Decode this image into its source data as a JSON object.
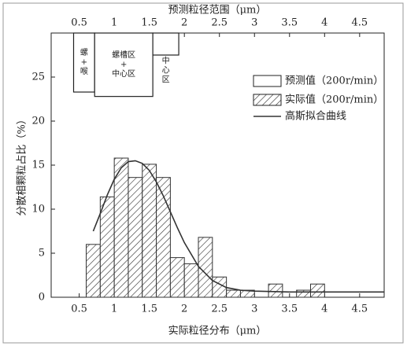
{
  "chart_data": {
    "type": "histogram",
    "title": "预测粒径范围（μm）",
    "x_label": "实际粒径分布（μm）",
    "y_label": "分散相颗粒占比（%）",
    "bins": [
      0.6,
      0.8,
      1.0,
      1.2,
      1.4,
      1.6,
      1.8,
      2.0,
      2.2,
      2.4,
      2.6,
      2.8,
      3.0,
      3.2,
      3.4,
      3.6,
      3.8,
      4.0
    ],
    "series": [
      {
        "name": "实际值（200r/min）",
        "color": "#333333",
        "values": [
          6,
          11.4,
          15.8,
          13.6,
          15.1,
          13.6,
          4.5,
          3.8,
          6.8,
          2.3,
          0.8,
          0.8,
          0,
          1.5,
          0,
          0.8,
          1.5
        ]
      },
      {
        "name": "高斯拟合曲线",
        "color": "#333333",
        "x": [
          0.7,
          0.8,
          0.9,
          1.0,
          1.1,
          1.2,
          1.3,
          1.4,
          1.5,
          1.6,
          1.7,
          1.8,
          1.9,
          2.0,
          2.2,
          2.4,
          2.6,
          2.8,
          3.0,
          3.5,
          4.0,
          4.5,
          4.85
        ],
        "values": [
          7.5,
          9.5,
          11.6,
          13.4,
          14.7,
          15.4,
          15.5,
          15.2,
          14.4,
          13.1,
          11.5,
          9.7,
          7.9,
          6.2,
          3.5,
          1.9,
          1.1,
          0.8,
          0.7,
          0.6,
          0.6,
          0.6,
          0.6
        ]
      }
    ],
    "predicted": {
      "name": "预测值（200r/min）",
      "ranges": [
        [
          0.42,
          0.72
        ],
        [
          0.72,
          1.55
        ],
        [
          1.55,
          1.92
        ]
      ],
      "bottoms": [
        23.3,
        22.8,
        27.5
      ],
      "labels": [
        [
          "螺",
          "+",
          "喉"
        ],
        [
          "螺槽区",
          "+",
          "中心区"
        ],
        [
          "中",
          "心",
          "区"
        ]
      ]
    },
    "xlim": [
      0.1,
      4.85
    ],
    "xticks": [
      0.5,
      1.0,
      1.5,
      2.0,
      2.5,
      3.0,
      3.5,
      4.0,
      4.5
    ],
    "x2lim": [
      0.1,
      4.85
    ],
    "x2ticks": [
      0.5,
      1.0,
      1.5,
      2.0,
      2.5,
      3.0,
      3.5,
      4.0,
      4.5
    ],
    "ylim": [
      0,
      30
    ],
    "yticks": [
      0,
      5,
      10,
      15,
      20,
      25
    ]
  }
}
